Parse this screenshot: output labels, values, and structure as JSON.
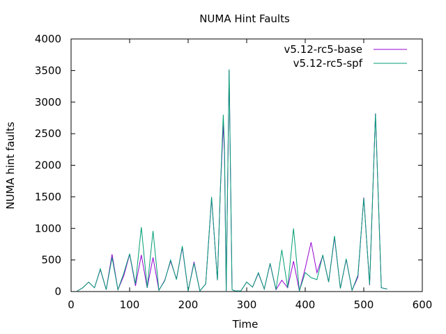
{
  "chart_data": {
    "type": "line",
    "title": "NUMA Hint Faults",
    "xlabel": "Time",
    "ylabel": "NUMA hint faults",
    "xlim": [
      0,
      600
    ],
    "ylim": [
      0,
      4000
    ],
    "xticks": [
      0,
      100,
      200,
      300,
      400,
      500,
      600
    ],
    "yticks": [
      0,
      500,
      1000,
      1500,
      2000,
      2500,
      3000,
      3500,
      4000
    ],
    "grid": false,
    "legend_position": "top-right",
    "series": [
      {
        "name": "v5.12-rc5-base",
        "color": "#9400d3",
        "x": [
          10,
          20,
          30,
          40,
          50,
          60,
          70,
          80,
          90,
          100,
          110,
          120,
          130,
          140,
          150,
          160,
          170,
          180,
          190,
          200,
          210,
          220,
          230,
          240,
          250,
          255,
          260,
          262,
          265,
          270,
          275,
          280,
          285,
          290,
          300,
          310,
          320,
          330,
          340,
          350,
          360,
          370,
          380,
          390,
          400,
          410,
          420,
          430,
          440,
          450,
          460,
          470,
          480,
          490,
          500,
          510,
          520,
          530,
          540
        ],
        "y": [
          5,
          60,
          150,
          60,
          350,
          30,
          590,
          30,
          250,
          590,
          90,
          580,
          60,
          540,
          20,
          180,
          480,
          200,
          700,
          10,
          470,
          10,
          120,
          1480,
          180,
          1600,
          2640,
          2200,
          10,
          3500,
          30,
          10,
          10,
          10,
          150,
          70,
          290,
          40,
          440,
          30,
          180,
          60,
          480,
          10,
          370,
          780,
          300,
          570,
          150,
          860,
          50,
          510,
          20,
          230,
          1490,
          100,
          2820,
          60,
          40
        ]
      },
      {
        "name": "v5.12-rc5-spf",
        "color": "#009e73",
        "x": [
          10,
          20,
          30,
          40,
          50,
          60,
          70,
          80,
          90,
          100,
          110,
          120,
          130,
          140,
          150,
          160,
          170,
          180,
          190,
          200,
          210,
          220,
          230,
          240,
          250,
          255,
          260,
          262,
          265,
          270,
          275,
          280,
          285,
          290,
          300,
          310,
          320,
          330,
          340,
          350,
          360,
          370,
          380,
          390,
          400,
          410,
          420,
          430,
          440,
          450,
          460,
          470,
          480,
          490,
          500,
          510,
          520,
          530,
          540
        ],
        "y": [
          5,
          60,
          150,
          60,
          360,
          30,
          540,
          30,
          290,
          600,
          120,
          1020,
          60,
          960,
          20,
          170,
          500,
          190,
          720,
          10,
          450,
          10,
          120,
          1500,
          180,
          1620,
          2800,
          2300,
          10,
          3520,
          30,
          10,
          10,
          10,
          150,
          70,
          300,
          40,
          450,
          30,
          660,
          60,
          1000,
          10,
          300,
          220,
          190,
          580,
          150,
          880,
          50,
          520,
          20,
          260,
          1480,
          110,
          2820,
          60,
          40
        ]
      }
    ]
  }
}
